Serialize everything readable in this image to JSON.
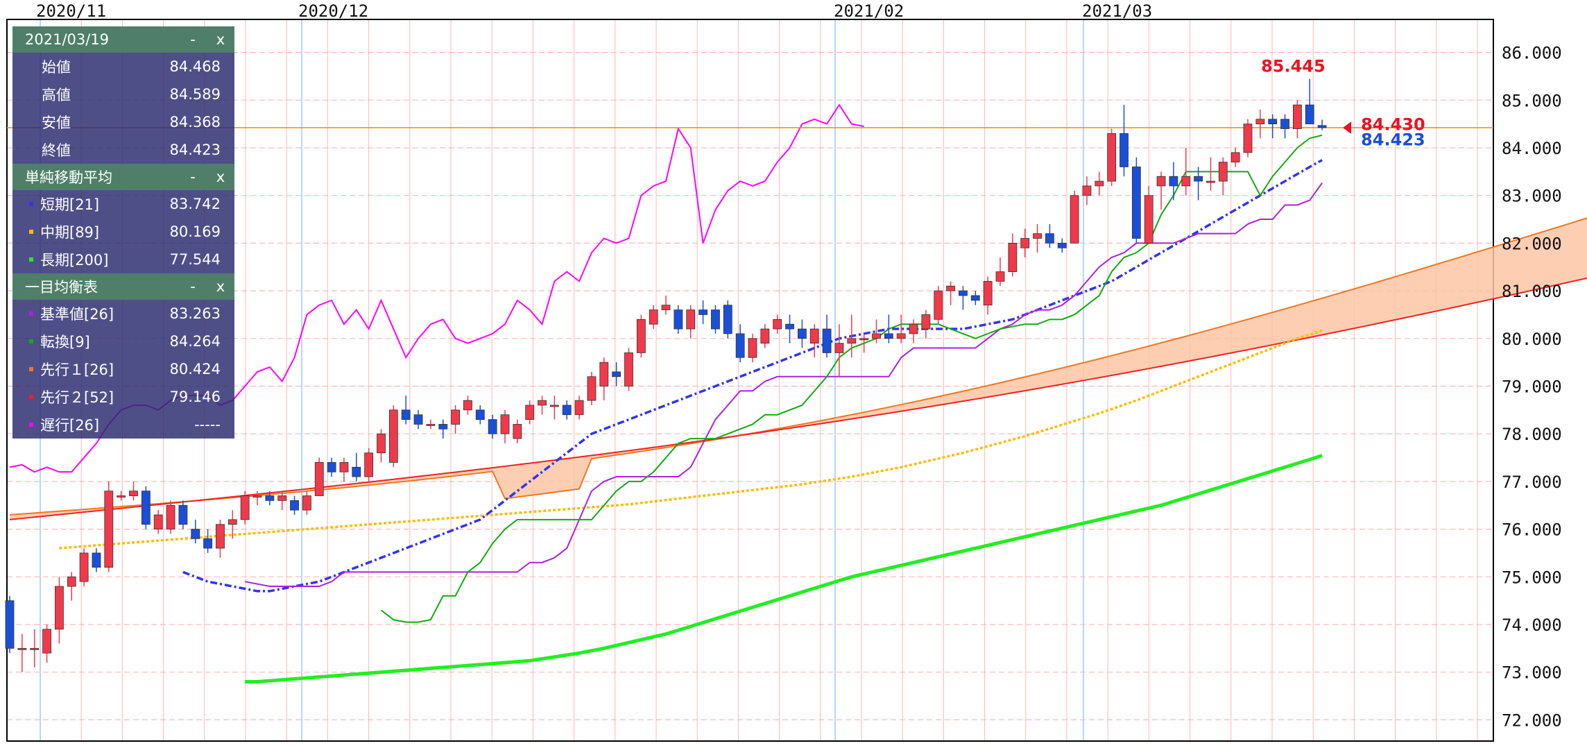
{
  "chart_data": {
    "type": "candlestick",
    "x_date_labels": [
      "2020/11",
      "2020/12",
      "2021/02",
      "2021/03"
    ],
    "y_ticks": [
      "86.000",
      "85.000",
      "84.000",
      "83.000",
      "82.000",
      "81.000",
      "80.000",
      "79.000",
      "78.000",
      "77.000",
      "76.000",
      "75.000",
      "74.000",
      "73.000",
      "72.000"
    ],
    "ylim": [
      71.75,
      86.5
    ],
    "grid": true,
    "candles": [
      [
        74.5,
        74.6,
        73.4,
        73.5
      ],
      [
        73.5,
        73.8,
        73.0,
        73.5
      ],
      [
        73.5,
        73.9,
        73.1,
        73.5
      ],
      [
        73.4,
        74.0,
        73.2,
        73.9
      ],
      [
        73.9,
        75.0,
        73.6,
        74.8
      ],
      [
        74.8,
        75.1,
        74.5,
        75.0
      ],
      [
        74.9,
        75.6,
        74.8,
        75.5
      ],
      [
        75.5,
        75.6,
        75.1,
        75.2
      ],
      [
        75.2,
        77.0,
        75.1,
        76.8
      ],
      [
        76.7,
        76.8,
        76.6,
        76.7
      ],
      [
        76.7,
        77.0,
        76.6,
        76.8
      ],
      [
        76.8,
        76.9,
        76.0,
        76.1
      ],
      [
        76.0,
        76.4,
        75.9,
        76.3
      ],
      [
        76.0,
        76.6,
        75.9,
        76.5
      ],
      [
        76.5,
        76.6,
        76.0,
        76.1
      ],
      [
        76.0,
        76.2,
        75.7,
        75.8
      ],
      [
        75.8,
        76.0,
        75.5,
        75.6
      ],
      [
        75.6,
        76.2,
        75.4,
        76.1
      ],
      [
        76.1,
        76.4,
        75.8,
        76.2
      ],
      [
        76.2,
        76.8,
        76.1,
        76.7
      ],
      [
        76.7,
        76.8,
        76.5,
        76.7
      ],
      [
        76.7,
        76.8,
        76.5,
        76.6
      ],
      [
        76.6,
        76.8,
        76.4,
        76.7
      ],
      [
        76.6,
        76.7,
        76.3,
        76.4
      ],
      [
        76.4,
        76.8,
        76.3,
        76.7
      ],
      [
        76.7,
        77.5,
        76.7,
        77.4
      ],
      [
        77.4,
        77.5,
        77.1,
        77.2
      ],
      [
        77.2,
        77.5,
        77.0,
        77.4
      ],
      [
        77.3,
        77.6,
        77.0,
        77.1
      ],
      [
        77.1,
        77.7,
        77.0,
        77.6
      ],
      [
        77.6,
        78.1,
        77.4,
        78.0
      ],
      [
        77.4,
        78.6,
        77.3,
        78.5
      ],
      [
        78.5,
        78.8,
        78.2,
        78.3
      ],
      [
        78.4,
        78.5,
        78.1,
        78.2
      ],
      [
        78.2,
        78.3,
        78.1,
        78.2
      ],
      [
        78.2,
        78.3,
        77.9,
        78.1
      ],
      [
        78.2,
        78.6,
        78.0,
        78.5
      ],
      [
        78.5,
        78.8,
        78.4,
        78.7
      ],
      [
        78.5,
        78.6,
        78.2,
        78.3
      ],
      [
        78.3,
        78.4,
        77.9,
        78.0
      ],
      [
        78.0,
        78.5,
        77.8,
        78.4
      ],
      [
        77.9,
        78.3,
        77.8,
        78.2
      ],
      [
        78.3,
        78.7,
        78.2,
        78.6
      ],
      [
        78.6,
        78.8,
        78.4,
        78.7
      ],
      [
        78.6,
        78.8,
        78.3,
        78.6
      ],
      [
        78.6,
        78.7,
        78.3,
        78.4
      ],
      [
        78.4,
        78.8,
        78.3,
        78.7
      ],
      [
        78.7,
        79.3,
        78.6,
        79.2
      ],
      [
        79.0,
        79.6,
        78.7,
        79.5
      ],
      [
        79.3,
        79.5,
        79.0,
        79.2
      ],
      [
        79.0,
        79.8,
        78.9,
        79.7
      ],
      [
        79.7,
        80.5,
        79.6,
        80.4
      ],
      [
        80.3,
        80.7,
        80.2,
        80.6
      ],
      [
        80.6,
        80.9,
        80.5,
        80.7
      ],
      [
        80.6,
        80.7,
        80.1,
        80.2
      ],
      [
        80.2,
        80.7,
        80.0,
        80.6
      ],
      [
        80.6,
        80.8,
        80.3,
        80.5
      ],
      [
        80.6,
        80.7,
        80.1,
        80.2
      ],
      [
        80.7,
        80.8,
        80.0,
        80.1
      ],
      [
        80.1,
        80.3,
        79.5,
        79.6
      ],
      [
        79.6,
        80.1,
        79.5,
        80.0
      ],
      [
        79.9,
        80.3,
        79.8,
        80.2
      ],
      [
        80.2,
        80.5,
        80.1,
        80.4
      ],
      [
        80.3,
        80.5,
        79.9,
        80.2
      ],
      [
        80.2,
        80.4,
        79.8,
        80.0
      ],
      [
        79.9,
        80.3,
        79.6,
        80.2
      ],
      [
        80.2,
        80.5,
        79.6,
        79.7
      ],
      [
        79.7,
        80.3,
        79.2,
        79.9
      ],
      [
        79.9,
        80.5,
        79.6,
        80.0
      ],
      [
        80.0,
        80.1,
        79.7,
        80.0
      ],
      [
        80.0,
        80.4,
        79.9,
        80.1
      ],
      [
        80.1,
        80.5,
        79.9,
        80.0
      ],
      [
        80.0,
        80.5,
        79.9,
        80.1
      ],
      [
        80.1,
        80.4,
        79.9,
        80.3
      ],
      [
        80.2,
        80.6,
        80.0,
        80.5
      ],
      [
        80.4,
        81.1,
        80.3,
        81.0
      ],
      [
        81.0,
        81.2,
        80.7,
        81.1
      ],
      [
        81.0,
        81.1,
        80.6,
        80.9
      ],
      [
        80.9,
        81.0,
        80.7,
        80.8
      ],
      [
        80.7,
        81.3,
        80.5,
        81.2
      ],
      [
        81.2,
        81.7,
        81.1,
        81.4
      ],
      [
        81.4,
        82.2,
        81.3,
        82.0
      ],
      [
        81.9,
        82.3,
        81.7,
        82.1
      ],
      [
        82.1,
        82.4,
        81.8,
        82.2
      ],
      [
        82.2,
        82.4,
        81.9,
        82.0
      ],
      [
        82.0,
        82.1,
        81.8,
        81.9
      ],
      [
        82.0,
        83.1,
        82.0,
        83.0
      ],
      [
        83.0,
        83.4,
        82.8,
        83.2
      ],
      [
        83.2,
        83.5,
        83.0,
        83.3
      ],
      [
        83.3,
        84.4,
        83.2,
        84.3
      ],
      [
        84.3,
        84.9,
        83.4,
        83.6
      ],
      [
        83.6,
        83.8,
        82.0,
        82.1
      ],
      [
        82.0,
        83.2,
        82.0,
        83.0
      ],
      [
        83.2,
        83.5,
        82.7,
        83.4
      ],
      [
        83.4,
        83.7,
        82.9,
        83.2
      ],
      [
        83.2,
        84.0,
        83.0,
        83.4
      ],
      [
        83.4,
        83.6,
        82.9,
        83.3
      ],
      [
        83.3,
        83.8,
        83.1,
        83.3
      ],
      [
        83.3,
        83.8,
        83.0,
        83.7
      ],
      [
        83.7,
        84.0,
        83.6,
        83.9
      ],
      [
        83.9,
        84.6,
        83.8,
        84.5
      ],
      [
        84.5,
        84.8,
        84.2,
        84.6
      ],
      [
        84.6,
        84.7,
        84.2,
        84.5
      ],
      [
        84.6,
        84.7,
        84.2,
        84.4
      ],
      [
        84.4,
        85.0,
        84.2,
        84.9
      ],
      [
        84.9,
        85.445,
        84.5,
        84.5
      ],
      [
        84.468,
        84.589,
        84.368,
        84.423
      ]
    ],
    "series": [
      {
        "name": "遅行[26]",
        "color": "#ff00ff"
      },
      {
        "name": "長期[200]",
        "color": "#22ee22"
      },
      {
        "name": "中期[89]",
        "color": "#ffbb00"
      },
      {
        "name": "短期[21]",
        "color": "#3333ee"
      },
      {
        "name": "基準値[26]",
        "color": "#aa22dd"
      },
      {
        "name": "転換[9]",
        "color": "#11aa11"
      },
      {
        "name": "先行１[26]",
        "color": "#ee7722"
      },
      {
        "name": "先行２[52]",
        "color": "#ee2222"
      }
    ],
    "lagging_values": [
      77.3,
      77.35,
      77.2,
      77.3,
      77.2,
      77.2,
      77.5,
      77.8,
      78.2,
      78.5,
      78.6,
      78.6,
      78.5,
      78.7,
      78.8,
      78.8,
      78.8,
      78.6,
      78.7,
      79.0,
      79.3,
      79.4,
      79.1,
      79.6,
      80.5,
      80.7,
      80.8,
      80.3,
      80.6,
      80.2,
      80.8,
      80.2,
      79.6,
      80.0,
      80.3,
      80.4,
      80.0,
      79.9,
      80.0,
      80.1,
      80.3,
      80.8,
      80.6,
      80.3,
      81.2,
      81.4,
      81.2,
      81.8,
      82.1,
      82.0,
      82.1,
      83.0,
      83.2,
      83.3,
      84.4,
      84.0,
      82.0,
      82.7,
      83.1,
      83.3,
      83.2,
      83.3,
      83.7,
      84.0,
      84.5,
      84.6,
      84.5,
      84.9,
      84.5,
      84.45
    ],
    "long_ma": [
      72.8,
      72.8,
      72.82,
      72.84,
      72.86,
      72.88,
      72.9,
      72.92,
      72.94,
      72.96,
      72.98,
      73.0,
      73.02,
      73.04,
      73.06,
      73.08,
      73.1,
      73.12,
      73.14,
      73.16,
      73.18,
      73.2,
      73.22,
      73.24,
      73.28,
      73.32,
      73.36,
      73.4,
      73.45,
      73.5,
      73.56,
      73.62,
      73.68,
      73.74,
      73.8,
      73.88,
      73.96,
      74.04,
      74.12,
      74.2,
      74.28,
      74.36,
      74.44,
      74.52,
      74.6,
      74.68,
      74.76,
      74.84,
      74.92,
      75.0,
      75.06,
      75.12,
      75.18,
      75.24,
      75.3,
      75.36,
      75.42,
      75.48,
      75.54,
      75.6,
      75.66,
      75.72,
      75.78,
      75.84,
      75.9,
      75.96,
      76.02,
      76.08,
      76.14,
      76.2,
      76.26,
      76.32,
      76.38,
      76.44,
      76.5,
      76.58,
      76.66,
      76.74,
      76.82,
      76.9,
      76.98,
      77.06,
      77.14,
      77.22,
      77.3,
      77.38,
      77.46,
      77.544
    ],
    "mid_ma": [
      75.6,
      75.62,
      75.64,
      75.66,
      75.68,
      75.7,
      75.72,
      75.74,
      75.76,
      75.78,
      75.8,
      75.82,
      75.84,
      75.86,
      75.88,
      75.9,
      75.92,
      75.94,
      75.96,
      75.98,
      76.0,
      76.02,
      76.04,
      76.06,
      76.08,
      76.1,
      76.12,
      76.14,
      76.16,
      76.18,
      76.2,
      76.22,
      76.24,
      76.26,
      76.28,
      76.3,
      76.32,
      76.34,
      76.36,
      76.38,
      76.4,
      76.42,
      76.44,
      76.46,
      76.48,
      76.5,
      76.52,
      76.55,
      76.58,
      76.61,
      76.64,
      76.67,
      76.7,
      76.73,
      76.76,
      76.79,
      76.82,
      76.85,
      76.88,
      76.91,
      76.94,
      76.98,
      77.02,
      77.06,
      77.1,
      77.15,
      77.2,
      77.25,
      77.3,
      77.36,
      77.42,
      77.48,
      77.54,
      77.6,
      77.67,
      77.74,
      77.81,
      77.88,
      77.95,
      78.03,
      78.11,
      78.19,
      78.27,
      78.35,
      78.43,
      78.52,
      78.61,
      78.7,
      78.8,
      78.9,
      79.0,
      79.1,
      79.2,
      79.3,
      79.4,
      79.5,
      79.6,
      79.7,
      79.8,
      79.9,
      80.0,
      80.08,
      80.169
    ],
    "short_ma": [
      75.1,
      75.0,
      74.9,
      74.85,
      74.8,
      74.75,
      74.7,
      74.7,
      74.75,
      74.8,
      74.85,
      74.9,
      75.0,
      75.1,
      75.2,
      75.3,
      75.4,
      75.5,
      75.6,
      75.7,
      75.8,
      75.9,
      76.0,
      76.1,
      76.2,
      76.4,
      76.6,
      76.8,
      77.0,
      77.2,
      77.4,
      77.6,
      77.8,
      78.0,
      78.1,
      78.2,
      78.3,
      78.4,
      78.5,
      78.6,
      78.7,
      78.8,
      78.9,
      79.0,
      79.1,
      79.2,
      79.3,
      79.4,
      79.5,
      79.6,
      79.7,
      79.8,
      79.9,
      80.0,
      80.05,
      80.1,
      80.15,
      80.2,
      80.2,
      80.2,
      80.2,
      80.2,
      80.2,
      80.2,
      80.25,
      80.3,
      80.35,
      80.4,
      80.5,
      80.6,
      80.7,
      80.8,
      80.9,
      81.0,
      81.1,
      81.2,
      81.35,
      81.5,
      81.65,
      81.8,
      81.95,
      82.1,
      82.25,
      82.4,
      82.55,
      82.7,
      82.85,
      83.0,
      83.15,
      83.3,
      83.45,
      83.6,
      83.742
    ],
    "kijun": [
      74.9,
      74.85,
      74.8,
      74.8,
      74.8,
      74.8,
      74.8,
      74.9,
      75.1,
      75.1,
      75.1,
      75.1,
      75.1,
      75.1,
      75.1,
      75.1,
      75.1,
      75.1,
      75.1,
      75.1,
      75.1,
      75.1,
      75.1,
      75.3,
      75.3,
      75.4,
      75.6,
      76.2,
      76.8,
      77.0,
      77.1,
      77.1,
      77.1,
      77.1,
      77.1,
      77.1,
      77.3,
      77.8,
      78.3,
      78.6,
      78.9,
      78.9,
      79.1,
      79.2,
      79.2,
      79.2,
      79.2,
      79.2,
      79.2,
      79.2,
      79.2,
      79.2,
      79.2,
      79.6,
      79.8,
      79.8,
      79.8,
      79.8,
      79.8,
      79.8,
      80.0,
      80.2,
      80.3,
      80.5,
      80.6,
      80.6,
      80.7,
      80.9,
      81.2,
      81.5,
      81.7,
      81.8,
      82.0,
      82.0,
      82.0,
      82.0,
      82.1,
      82.2,
      82.2,
      82.2,
      82.2,
      82.4,
      82.5,
      82.5,
      82.8,
      82.8,
      82.9,
      83.263
    ],
    "tenkan": [
      74.3,
      74.1,
      74.05,
      74.05,
      74.1,
      74.6,
      74.6,
      75.1,
      75.3,
      75.7,
      76.0,
      76.2,
      76.2,
      76.2,
      76.2,
      76.2,
      76.2,
      76.2,
      76.5,
      76.8,
      77.0,
      77.0,
      77.2,
      77.5,
      77.8,
      77.9,
      77.9,
      77.9,
      78.0,
      78.1,
      78.2,
      78.4,
      78.4,
      78.5,
      78.6,
      78.9,
      79.2,
      79.6,
      79.8,
      79.9,
      80.0,
      80.2,
      80.3,
      80.3,
      80.3,
      80.3,
      80.2,
      80.1,
      80.0,
      80.1,
      80.2,
      80.25,
      80.3,
      80.3,
      80.4,
      80.4,
      80.5,
      80.7,
      80.9,
      81.4,
      81.7,
      81.8,
      82.0,
      82.6,
      83.0,
      83.5,
      83.5,
      83.5,
      83.5,
      83.5,
      83.5,
      83.0,
      83.4,
      83.7,
      84.0,
      84.2,
      84.264
    ]
  },
  "price_labels": {
    "high_label": "85.445",
    "ask_label": "84.430",
    "bid_label": "84.423"
  },
  "panel": {
    "date": "2021/03/19",
    "minimize": "-",
    "close": "x",
    "ohlc": [
      {
        "label": "始値",
        "value": "84.468"
      },
      {
        "label": "高値",
        "value": "84.589"
      },
      {
        "label": "安値",
        "value": "84.368"
      },
      {
        "label": "終値",
        "value": "84.423"
      }
    ],
    "sma_title": "単純移動平均",
    "sma": [
      {
        "label": "短期[21]",
        "value": "83.742",
        "color": "#3333ee"
      },
      {
        "label": "中期[89]",
        "value": "80.169",
        "color": "#ffbb00"
      },
      {
        "label": "長期[200]",
        "value": "77.544",
        "color": "#22ee22"
      }
    ],
    "ichimoku_title": "一目均衡表",
    "ichimoku": [
      {
        "label": "基準値[26]",
        "value": "83.263",
        "color": "#aa22dd"
      },
      {
        "label": "転換[9]",
        "value": "84.264",
        "color": "#11aa11"
      },
      {
        "label": "先行１[26]",
        "value": "80.424",
        "color": "#ee7722"
      },
      {
        "label": "先行２[52]",
        "value": "79.146",
        "color": "#ee2222"
      },
      {
        "label": "遅行[26]",
        "value": "-----",
        "color": "#ff00ff"
      }
    ]
  }
}
